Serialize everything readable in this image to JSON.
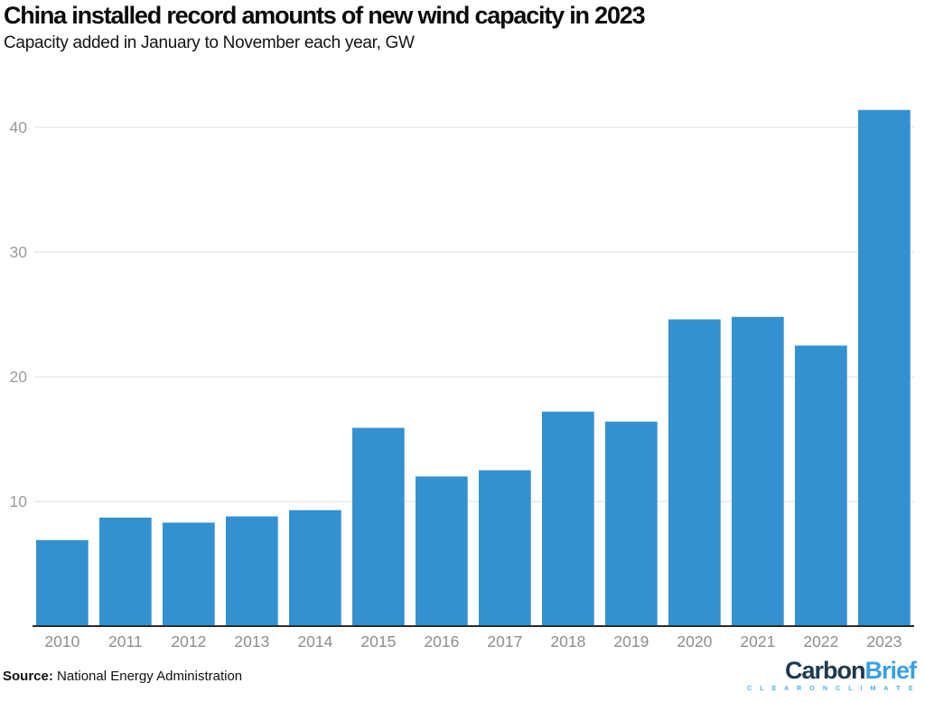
{
  "header": {
    "title": "China installed record amounts of new wind capacity in 2023",
    "subtitle": "Capacity added in January to November each year, GW"
  },
  "chart_data": {
    "type": "bar",
    "title": "China installed record amounts of new wind capacity in 2023",
    "subtitle": "Capacity added in January to November each year, GW",
    "categories": [
      "2010",
      "2011",
      "2012",
      "2013",
      "2014",
      "2015",
      "2016",
      "2017",
      "2018",
      "2019",
      "2020",
      "2021",
      "2022",
      "2023"
    ],
    "values": [
      6.9,
      8.7,
      8.3,
      8.8,
      9.3,
      15.9,
      12.0,
      12.5,
      17.2,
      16.4,
      24.6,
      24.8,
      22.5,
      41.4
    ],
    "ylabel": "GW",
    "ylim": [
      0,
      43
    ],
    "yticks": [
      10,
      20,
      30,
      40
    ],
    "grid": true,
    "legend": "none"
  },
  "footer": {
    "source_label": "Source:",
    "source_text": " National Energy Administration"
  },
  "logo": {
    "brand_part1": "Carbon",
    "brand_part2": "Brief",
    "tagline": "C L E A R   O N   C L I M A T E"
  },
  "colors": {
    "bar": "#3391d0",
    "grid": "#dcdcdc",
    "axis_line": "#2b2b2b",
    "ytick_text": "#9b9b9b",
    "xtick_text": "#8d8d8d",
    "logo_dark": "#20394e",
    "logo_blue": "#3ba0e0",
    "logo_tagline": "#4fade3"
  }
}
